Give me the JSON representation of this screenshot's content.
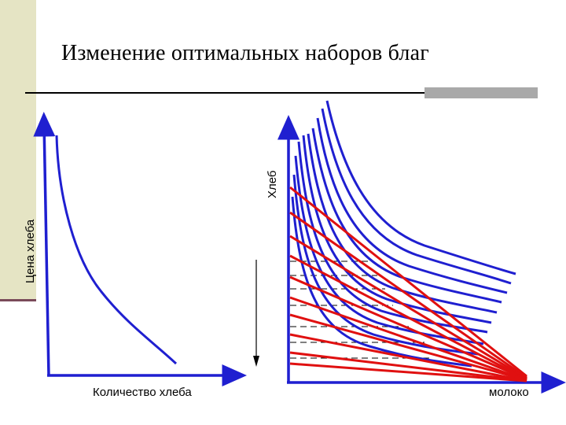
{
  "slide": {
    "title": "Изменение оптимальных наборов благ"
  },
  "left_graph": {
    "y_label": "Цена хлеба",
    "x_label": "Количество хлеба",
    "curve_color": "#1f1fd0"
  },
  "right_graph": {
    "y_label": "Хлеб",
    "x_label": "молоко",
    "indifference_curve_count": 10,
    "budget_line_count": 10,
    "indifference_color": "#1f1fd0",
    "budget_color": "#e01010"
  }
}
